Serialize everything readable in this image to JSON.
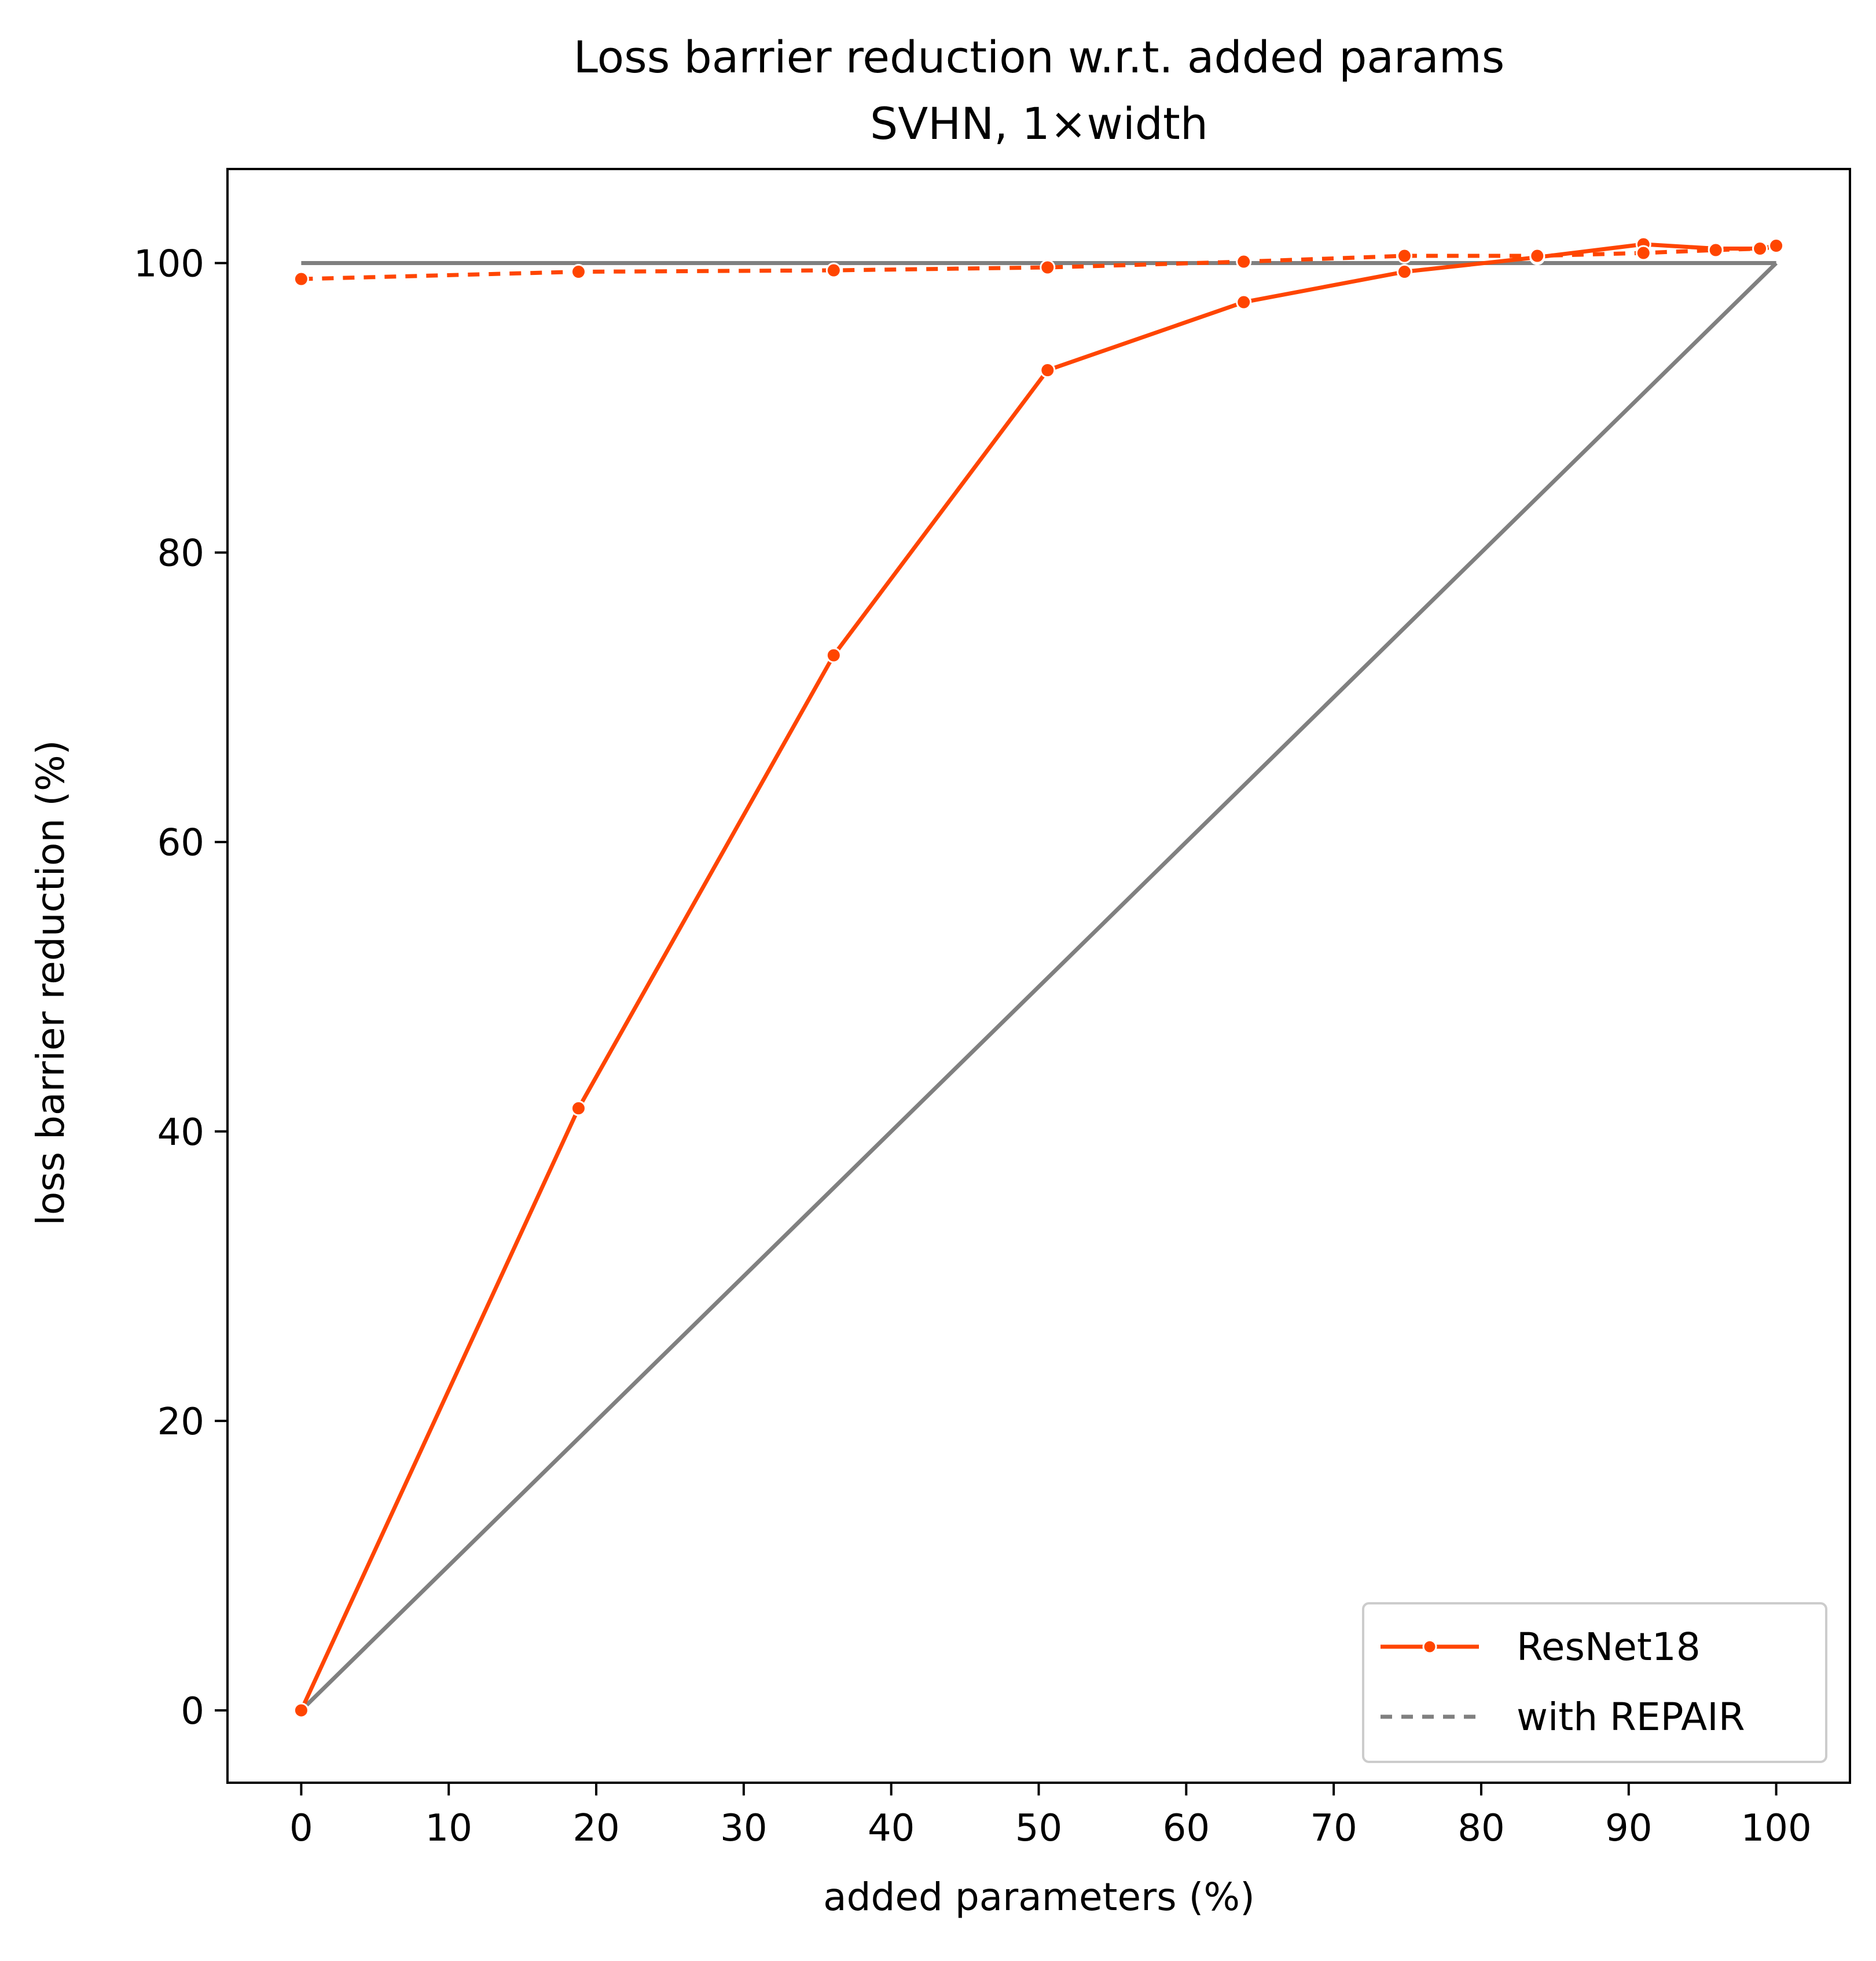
{
  "chart_data": {
    "type": "line",
    "title": "Loss barrier reduction w.r.t. added params",
    "subtitle": "SVHN, 1×width",
    "xlabel": "added parameters (%)",
    "ylabel": "loss barrier reduction (%)",
    "xlim": [
      -5,
      105
    ],
    "ylim": [
      -5,
      106.5
    ],
    "xticks": [
      0,
      10,
      20,
      30,
      40,
      50,
      60,
      70,
      80,
      90,
      100
    ],
    "yticks": [
      0,
      20,
      40,
      60,
      80,
      100
    ],
    "grid": false,
    "legend_position": "lower-right",
    "legend": [
      {
        "label": "ResNet18",
        "style": "solid-marker"
      },
      {
        "label": "with REPAIR",
        "style": "dashed"
      }
    ],
    "reference_lines": [
      {
        "x": [
          0,
          100
        ],
        "y": [
          100,
          100
        ],
        "color": "#808080",
        "style": "solid"
      },
      {
        "x": [
          0,
          100
        ],
        "y": [
          0,
          100
        ],
        "color": "#808080",
        "style": "solid"
      }
    ],
    "series": [
      {
        "name": "ResNet18",
        "color": "#ff4500",
        "style": "solid",
        "marker": "circle",
        "x": [
          0,
          18.8,
          36.1,
          50.6,
          63.9,
          74.8,
          83.8,
          91,
          95.9,
          98.9,
          100
        ],
        "y": [
          0,
          41.6,
          72.9,
          92.6,
          97.3,
          99.4,
          100.4,
          101.3,
          101.0,
          101.0,
          101.1
        ]
      },
      {
        "name": "with REPAIR",
        "color": "#ff4500",
        "style": "dashed",
        "marker": "circle",
        "x": [
          0,
          18.8,
          36.1,
          50.6,
          63.9,
          74.8,
          83.8,
          91,
          95.9,
          98.9,
          100
        ],
        "y": [
          98.9,
          99.4,
          99.5,
          99.7,
          100.1,
          100.5,
          100.5,
          100.7,
          100.9,
          101.0,
          101.2
        ]
      }
    ]
  }
}
